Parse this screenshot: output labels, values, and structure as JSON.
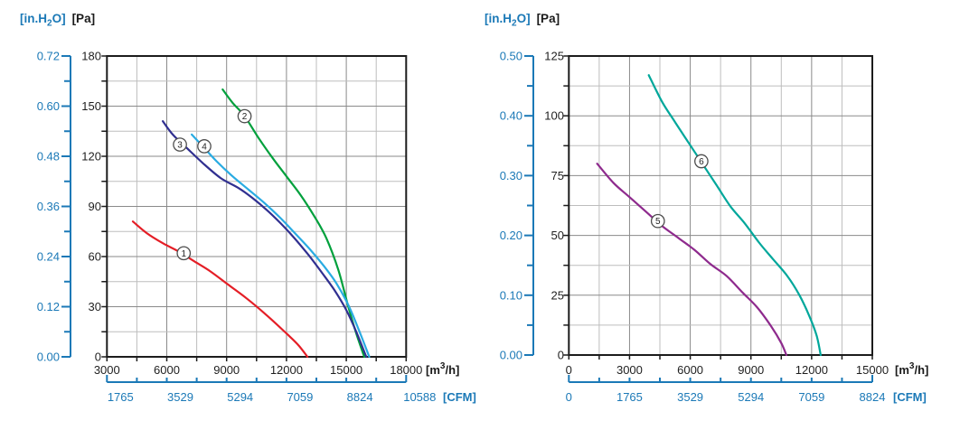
{
  "colors": {
    "axis_blue": "#1b79b7",
    "frame": "#1c1c1c",
    "grid_major": "#8a8a8a",
    "grid_minor": "#bdbdbd",
    "curve_label_ring": "#4d4d4d"
  },
  "chart_data": [
    {
      "type": "line",
      "name": "left-chart",
      "title": {
        "inh2o_pre": "[in.H",
        "inh2o_sub": "2",
        "inh2o_post": "O]",
        "pa": "[Pa]"
      },
      "pa_axis": {
        "max": 180,
        "minor_step": 15,
        "tick_values": [
          180,
          150,
          120,
          90,
          60,
          30,
          0
        ],
        "tick_labels": [
          "180",
          "150",
          "120",
          "90",
          "60",
          "30",
          "0"
        ]
      },
      "inh2o_axis": {
        "labels": [
          "0.72",
          "0.60",
          "0.48",
          "0.36",
          "0.24",
          "0.12",
          "0.00"
        ]
      },
      "flow_axis": {
        "min": 3000,
        "max": 18000,
        "minor_step": 1500,
        "major_step": 3000,
        "tick_labels": [
          "3000",
          "6000",
          "9000",
          "12000",
          "15000",
          "18000"
        ],
        "unit_pre": "[m",
        "unit_sup": "3",
        "unit_post": "/h]"
      },
      "cfm_axis": {
        "labels": [
          "1765",
          "3529",
          "5294",
          "7059",
          "8824",
          "10588"
        ],
        "unit": "[CFM]",
        "label_offset": 15
      },
      "series": [
        {
          "id": "1",
          "label": "1",
          "color": "#e41e26",
          "label_at": [
            6850,
            62
          ],
          "points": [
            [
              4300,
              81
            ],
            [
              5000,
              74
            ],
            [
              5800,
              68
            ],
            [
              6600,
              63
            ],
            [
              7400,
              57
            ],
            [
              8200,
              51
            ],
            [
              9100,
              43
            ],
            [
              10000,
              35
            ],
            [
              11000,
              25
            ],
            [
              12000,
              14
            ],
            [
              12600,
              7
            ],
            [
              13050,
              0
            ]
          ]
        },
        {
          "id": "2",
          "label": "2",
          "color": "#00a03c",
          "label_at": [
            9900,
            144
          ],
          "points": [
            [
              8800,
              160
            ],
            [
              9300,
              152
            ],
            [
              9900,
              144
            ],
            [
              10600,
              131
            ],
            [
              11300,
              119
            ],
            [
              12000,
              108
            ],
            [
              12700,
              97
            ],
            [
              13400,
              84
            ],
            [
              14000,
              71
            ],
            [
              14600,
              52
            ],
            [
              15100,
              30
            ],
            [
              15500,
              14
            ],
            [
              15900,
              0
            ]
          ]
        },
        {
          "id": "3",
          "label": "3",
          "color": "#302f90",
          "label_at": [
            6660,
            127
          ],
          "points": [
            [
              5800,
              141
            ],
            [
              6300,
              133
            ],
            [
              7000,
              125
            ],
            [
              7800,
              116
            ],
            [
              8700,
              107
            ],
            [
              9600,
              101
            ],
            [
              10300,
              95
            ],
            [
              11000,
              88
            ],
            [
              11700,
              80
            ],
            [
              12400,
              71
            ],
            [
              13100,
              61
            ],
            [
              13800,
              50
            ],
            [
              14400,
              40
            ],
            [
              15000,
              28
            ],
            [
              15500,
              15
            ],
            [
              16000,
              0
            ]
          ]
        },
        {
          "id": "4",
          "label": "4",
          "color": "#29abe2",
          "label_at": [
            7880,
            126
          ],
          "points": [
            [
              7250,
              133
            ],
            [
              7800,
              126
            ],
            [
              8500,
              117
            ],
            [
              9300,
              108
            ],
            [
              10100,
              100
            ],
            [
              10900,
              92
            ],
            [
              11700,
              83
            ],
            [
              12500,
              73
            ],
            [
              13200,
              64
            ],
            [
              13900,
              54
            ],
            [
              14500,
              44
            ],
            [
              15100,
              31
            ],
            [
              15600,
              17
            ],
            [
              16150,
              0
            ]
          ]
        }
      ]
    },
    {
      "type": "line",
      "name": "right-chart",
      "title": {
        "inh2o_pre": "[in.H",
        "inh2o_sub": "2",
        "inh2o_post": "O]",
        "pa": "[Pa]"
      },
      "pa_axis": {
        "max": 125,
        "minor_step": 12.5,
        "tick_values": [
          125,
          100,
          75,
          50,
          25,
          0
        ],
        "tick_labels": [
          "125",
          "100",
          "75",
          "50",
          "25",
          "0"
        ]
      },
      "inh2o_axis": {
        "labels": [
          "0.50",
          "0.40",
          "0.30",
          "0.20",
          "0.10",
          "0.00"
        ]
      },
      "flow_axis": {
        "min": 0,
        "max": 15000,
        "minor_step": 1500,
        "major_step": 3000,
        "tick_labels": [
          "0",
          "3000",
          "6000",
          "9000",
          "12000",
          "15000"
        ],
        "unit_pre": "[m",
        "unit_sup": "3",
        "unit_post": "/h]"
      },
      "cfm_axis": {
        "labels": [
          "0",
          "1765",
          "3529",
          "5294",
          "7059",
          "8824"
        ],
        "unit": "[CFM]",
        "label_offset": 0
      },
      "series": [
        {
          "id": "5",
          "label": "5",
          "color": "#8e2a8d",
          "label_at": [
            4400,
            56
          ],
          "points": [
            [
              1400,
              80
            ],
            [
              2200,
              72
            ],
            [
              3000,
              66
            ],
            [
              3800,
              60
            ],
            [
              4600,
              54
            ],
            [
              5400,
              49
            ],
            [
              6200,
              44
            ],
            [
              7000,
              38
            ],
            [
              7800,
              33
            ],
            [
              8600,
              26
            ],
            [
              9300,
              20
            ],
            [
              10000,
              12
            ],
            [
              10500,
              5
            ],
            [
              10750,
              0
            ]
          ]
        },
        {
          "id": "6",
          "label": "6",
          "color": "#00a79b",
          "label_at": [
            6550,
            81
          ],
          "points": [
            [
              3950,
              117
            ],
            [
              4600,
              106
            ],
            [
              5200,
              98
            ],
            [
              5900,
              89
            ],
            [
              6600,
              80
            ],
            [
              7300,
              71
            ],
            [
              8000,
              62
            ],
            [
              8700,
              55
            ],
            [
              9400,
              47
            ],
            [
              10100,
              40
            ],
            [
              10800,
              33
            ],
            [
              11400,
              25
            ],
            [
              11900,
              16
            ],
            [
              12250,
              8
            ],
            [
              12450,
              0
            ]
          ]
        }
      ]
    }
  ]
}
